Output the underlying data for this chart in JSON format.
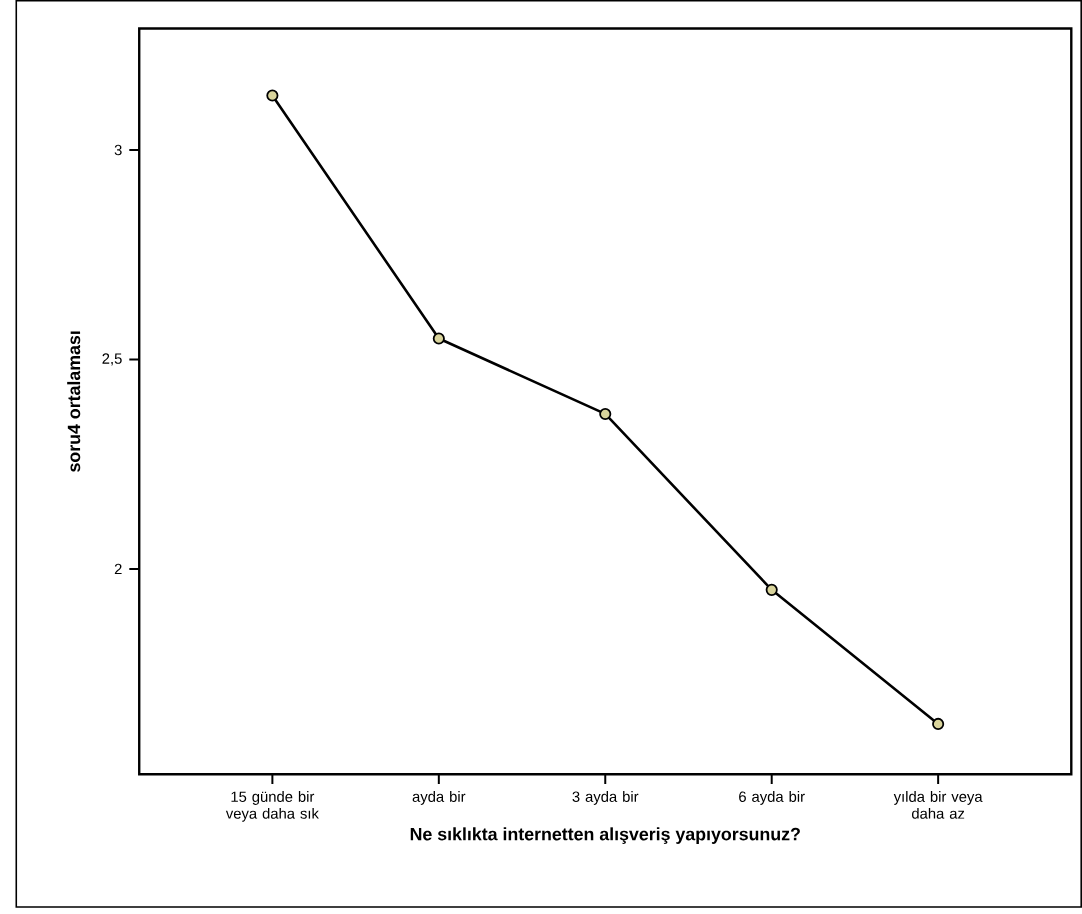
{
  "chart_data": {
    "type": "line",
    "xlabel": "Ne sıklıkta internetten alışveriş yapıyorsunuz?",
    "ylabel": "soru4 ortalaması",
    "categories": [
      "15 günde bir veya daha sık",
      "ayda bir",
      "3 ayda bir",
      "6 ayda bir",
      "yılda bir veya daha az"
    ],
    "values": [
      3.13,
      2.55,
      2.37,
      1.95,
      1.63
    ],
    "color": "#000000",
    "marker": "circle",
    "line_style": "solid",
    "grid": false,
    "ylim": [
      1.51,
      3.29
    ],
    "yticks": [
      2,
      {
        "value": 2.5,
        "label": "2,5"
      },
      3
    ]
  }
}
